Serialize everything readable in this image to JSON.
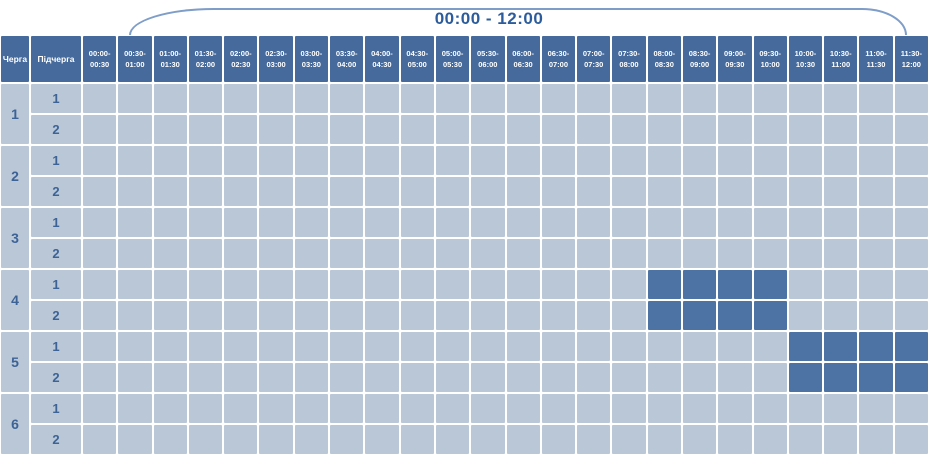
{
  "header": {
    "range_label": "00:00 - 12:00",
    "queue_column": "Черга",
    "subqueue_column": "Підчерга",
    "time_slots": [
      {
        "from": "00:00",
        "to": "00:30"
      },
      {
        "from": "00:30",
        "to": "01:00"
      },
      {
        "from": "01:00",
        "to": "01:30"
      },
      {
        "from": "01:30",
        "to": "02:00"
      },
      {
        "from": "02:00",
        "to": "02:30"
      },
      {
        "from": "02:30",
        "to": "03:00"
      },
      {
        "from": "03:00",
        "to": "03:30"
      },
      {
        "from": "03:30",
        "to": "04:00"
      },
      {
        "from": "04:00",
        "to": "04:30"
      },
      {
        "from": "04:30",
        "to": "05:00"
      },
      {
        "from": "05:00",
        "to": "05:30"
      },
      {
        "from": "05:30",
        "to": "06:00"
      },
      {
        "from": "06:00",
        "to": "06:30"
      },
      {
        "from": "06:30",
        "to": "07:00"
      },
      {
        "from": "07:00",
        "to": "07:30"
      },
      {
        "from": "07:30",
        "to": "08:00"
      },
      {
        "from": "08:00",
        "to": "08:30"
      },
      {
        "from": "08:30",
        "to": "09:00"
      },
      {
        "from": "09:00",
        "to": "09:30"
      },
      {
        "from": "09:30",
        "to": "10:00"
      },
      {
        "from": "10:00",
        "to": "10:30"
      },
      {
        "from": "10:30",
        "to": "11:00"
      },
      {
        "from": "11:00",
        "to": "11:30"
      },
      {
        "from": "11:30",
        "to": "12:00"
      }
    ]
  },
  "queues": [
    {
      "number": "1",
      "subqueues": [
        {
          "number": "1",
          "outage_slots": []
        },
        {
          "number": "2",
          "outage_slots": []
        }
      ]
    },
    {
      "number": "2",
      "subqueues": [
        {
          "number": "1",
          "outage_slots": []
        },
        {
          "number": "2",
          "outage_slots": []
        }
      ]
    },
    {
      "number": "3",
      "subqueues": [
        {
          "number": "1",
          "outage_slots": []
        },
        {
          "number": "2",
          "outage_slots": []
        }
      ]
    },
    {
      "number": "4",
      "subqueues": [
        {
          "number": "1",
          "outage_slots": [
            16,
            17,
            18,
            19
          ]
        },
        {
          "number": "2",
          "outage_slots": [
            16,
            17,
            18,
            19
          ]
        }
      ]
    },
    {
      "number": "5",
      "subqueues": [
        {
          "number": "1",
          "outage_slots": [
            20,
            21,
            22,
            23
          ]
        },
        {
          "number": "2",
          "outage_slots": [
            20,
            21,
            22,
            23
          ]
        }
      ]
    },
    {
      "number": "6",
      "subqueues": [
        {
          "number": "1",
          "outage_slots": []
        },
        {
          "number": "2",
          "outage_slots": []
        }
      ]
    }
  ],
  "chart_data": {
    "type": "heatmap",
    "title": "00:00 - 12:00",
    "x_categories": [
      "00:00-00:30",
      "00:30-01:00",
      "01:00-01:30",
      "01:30-02:00",
      "02:00-02:30",
      "02:30-03:00",
      "03:00-03:30",
      "03:30-04:00",
      "04:00-04:30",
      "04:30-05:00",
      "05:00-05:30",
      "05:30-06:00",
      "06:00-06:30",
      "06:30-07:00",
      "07:00-07:30",
      "07:30-08:00",
      "08:00-08:30",
      "08:30-09:00",
      "09:00-09:30",
      "09:30-10:00",
      "10:00-10:30",
      "10:30-11:00",
      "11:00-11:30",
      "11:30-12:00"
    ],
    "y_categories": [
      "1.1",
      "1.2",
      "2.1",
      "2.2",
      "3.1",
      "3.2",
      "4.1",
      "4.2",
      "5.1",
      "5.2",
      "6.1",
      "6.2"
    ],
    "marked_intervals": [
      {
        "queue": "4",
        "subqueue": "1",
        "from": "08:00",
        "to": "10:00"
      },
      {
        "queue": "4",
        "subqueue": "2",
        "from": "08:00",
        "to": "10:00"
      },
      {
        "queue": "5",
        "subqueue": "1",
        "from": "10:00",
        "to": "12:00"
      },
      {
        "queue": "5",
        "subqueue": "2",
        "from": "10:00",
        "to": "12:00"
      }
    ],
    "legend_position": "none",
    "grid": true
  },
  "colors": {
    "header_cell": "#466A9C",
    "outage_cell": "#4C73A4",
    "empty_cell": "#B9C7D7",
    "label_text": "#3D6396",
    "header_text": "#FFFFFF",
    "title_text": "#2C5C9C",
    "brace": "#7E9DC8",
    "grid_line": "#FFFFFF"
  }
}
